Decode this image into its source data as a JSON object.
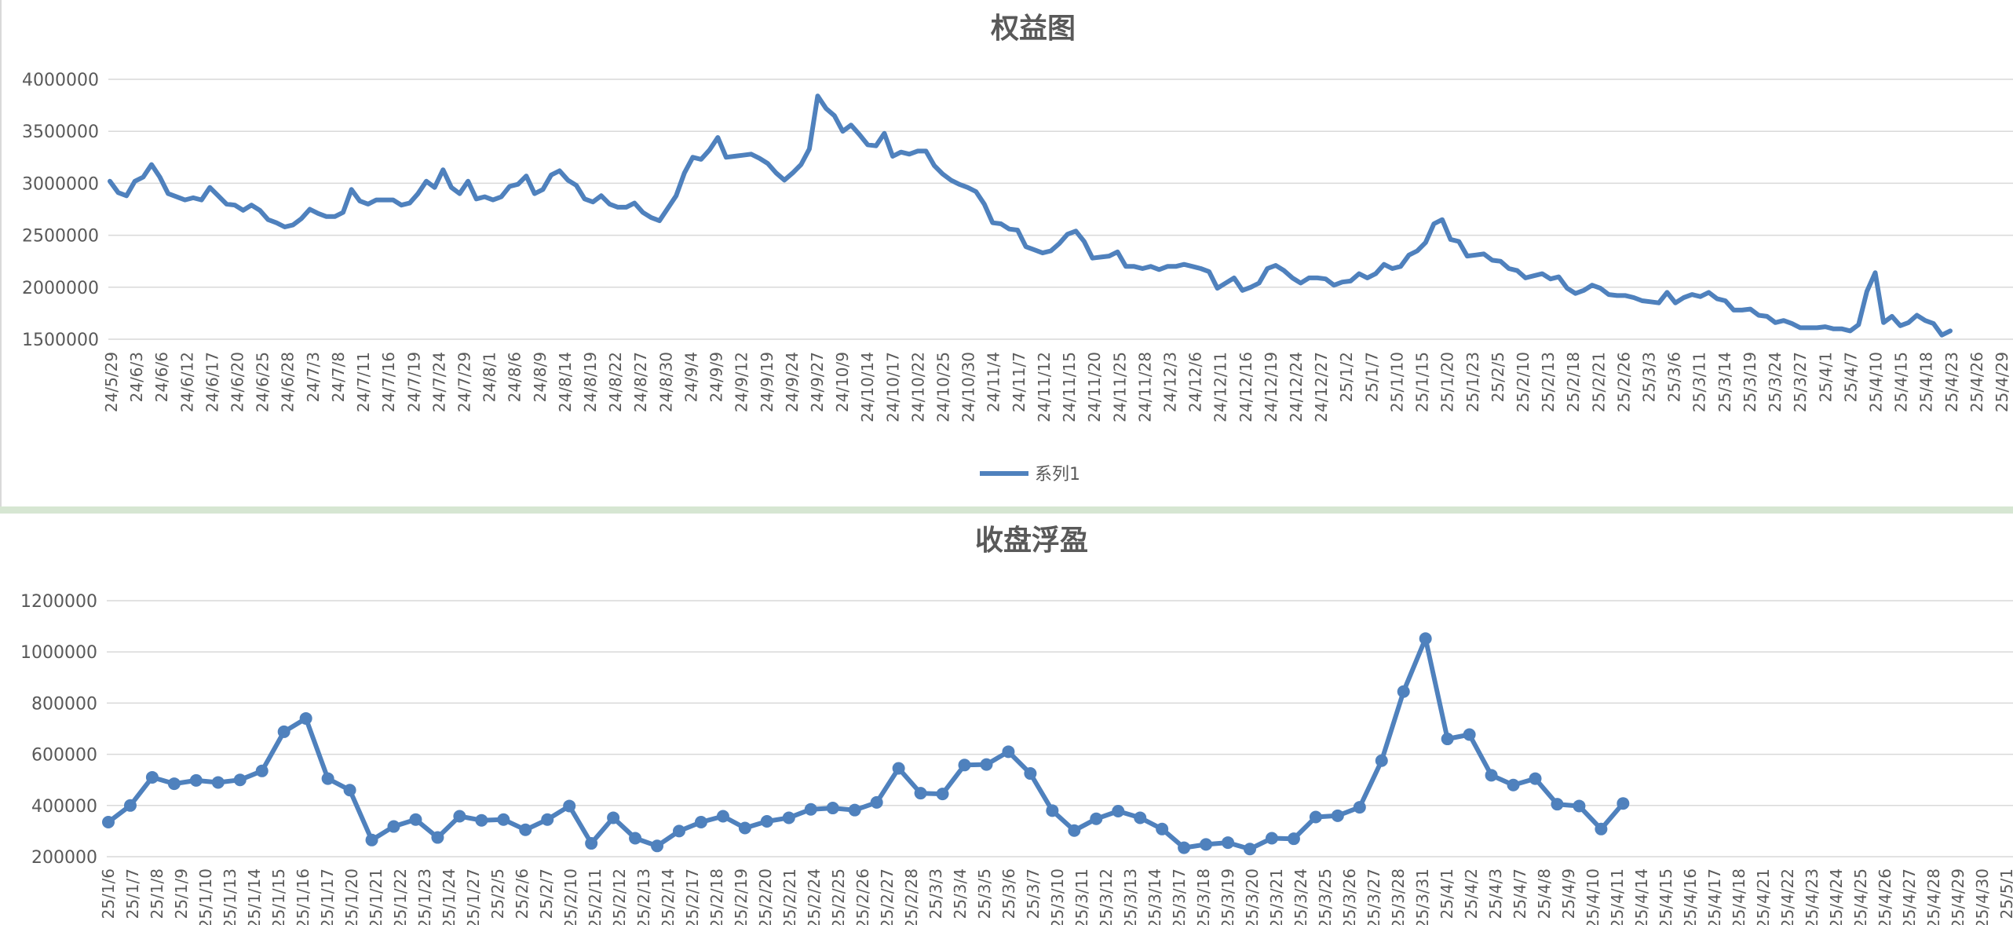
{
  "chart_data": [
    {
      "type": "line",
      "title": "权益图",
      "ylim": [
        1500000,
        4000000
      ],
      "yticks": [
        "1500000",
        "2000000",
        "2500000",
        "3000000",
        "3500000",
        "4000000"
      ],
      "grid": true,
      "legend": "bottom",
      "color": "#4f81bd",
      "markers": false,
      "x_labels": [
        "24/5/29",
        "24/6/3",
        "24/6/6",
        "24/6/12",
        "24/6/17",
        "24/6/20",
        "24/6/25",
        "24/6/28",
        "24/7/3",
        "24/7/8",
        "24/7/11",
        "24/7/16",
        "24/7/19",
        "24/7/24",
        "24/7/29",
        "24/8/1",
        "24/8/6",
        "24/8/9",
        "24/8/14",
        "24/8/19",
        "24/8/22",
        "24/8/27",
        "24/8/30",
        "24/9/4",
        "24/9/9",
        "24/9/12",
        "24/9/19",
        "24/9/24",
        "24/9/27",
        "24/10/9",
        "24/10/14",
        "24/10/17",
        "24/10/22",
        "24/10/25",
        "24/10/30",
        "24/11/4",
        "24/11/7",
        "24/11/12",
        "24/11/15",
        "24/11/20",
        "24/11/25",
        "24/11/28",
        "24/12/3",
        "24/12/6",
        "24/12/11",
        "24/12/16",
        "24/12/19",
        "24/12/24",
        "24/12/27",
        "25/1/2",
        "25/1/7",
        "25/1/10",
        "25/1/15",
        "25/1/20",
        "25/1/23",
        "25/2/5",
        "25/2/10",
        "25/2/13",
        "25/2/18",
        "25/2/21",
        "25/2/26",
        "25/3/3",
        "25/3/6",
        "25/3/11",
        "25/3/14",
        "25/3/19",
        "25/3/24",
        "25/3/27",
        "25/4/1",
        "25/4/7",
        "25/4/10",
        "25/4/15",
        "25/4/18",
        "25/4/23",
        "25/4/26",
        "25/4/29"
      ],
      "series": [
        {
          "name": "系列1",
          "values": [
            3020000,
            2910000,
            2880000,
            3020000,
            3060000,
            3180000,
            3060000,
            2900000,
            2870000,
            2840000,
            2860000,
            2840000,
            2960000,
            2880000,
            2800000,
            2790000,
            2740000,
            2790000,
            2740000,
            2650000,
            2620000,
            2580000,
            2600000,
            2660000,
            2750000,
            2710000,
            2680000,
            2680000,
            2720000,
            2940000,
            2830000,
            2800000,
            2840000,
            2840000,
            2840000,
            2790000,
            2810000,
            2900000,
            3020000,
            2960000,
            3130000,
            2960000,
            2900000,
            3020000,
            2850000,
            2870000,
            2840000,
            2870000,
            2970000,
            2990000,
            3070000,
            2900000,
            2940000,
            3080000,
            3120000,
            3030000,
            2980000,
            2850000,
            2820000,
            2880000,
            2800000,
            2770000,
            2770000,
            2810000,
            2720000,
            2670000,
            2640000,
            2760000,
            2880000,
            3100000,
            3250000,
            3230000,
            3320000,
            3440000,
            3250000,
            3260000,
            3270000,
            3280000,
            3240000,
            3190000,
            3100000,
            3030000,
            3100000,
            3180000,
            3330000,
            3840000,
            3720000,
            3650000,
            3500000,
            3560000,
            3470000,
            3370000,
            3360000,
            3480000,
            3260000,
            3300000,
            3280000,
            3310000,
            3310000,
            3170000,
            3090000,
            3030000,
            2990000,
            2960000,
            2920000,
            2800000,
            2620000,
            2610000,
            2560000,
            2550000,
            2390000,
            2360000,
            2330000,
            2350000,
            2420000,
            2510000,
            2540000,
            2440000,
            2280000,
            2290000,
            2300000,
            2340000,
            2200000,
            2200000,
            2180000,
            2200000,
            2170000,
            2200000,
            2200000,
            2220000,
            2200000,
            2180000,
            2150000,
            1990000,
            2040000,
            2090000,
            1970000,
            2000000,
            2040000,
            2180000,
            2210000,
            2160000,
            2090000,
            2040000,
            2090000,
            2090000,
            2080000,
            2020000,
            2050000,
            2060000,
            2130000,
            2090000,
            2130000,
            2220000,
            2180000,
            2200000,
            2310000,
            2350000,
            2430000,
            2610000,
            2650000,
            2460000,
            2440000,
            2300000,
            2310000,
            2320000,
            2260000,
            2250000,
            2180000,
            2160000,
            2090000,
            2110000,
            2130000,
            2080000,
            2100000,
            1990000,
            1940000,
            1970000,
            2020000,
            1990000,
            1930000,
            1920000,
            1920000,
            1900000,
            1870000,
            1860000,
            1850000,
            1950000,
            1850000,
            1900000,
            1930000,
            1910000,
            1950000,
            1890000,
            1870000,
            1780000,
            1780000,
            1790000,
            1730000,
            1720000,
            1660000,
            1680000,
            1650000,
            1610000,
            1610000,
            1610000,
            1620000,
            1600000,
            1600000,
            1580000,
            1640000,
            1960000,
            2140000,
            1660000,
            1720000,
            1630000,
            1660000,
            1730000,
            1680000,
            1650000,
            1540000,
            1580000
          ]
        }
      ]
    },
    {
      "type": "line",
      "title": "收盘浮盈",
      "ylim": [
        200000,
        1200000
      ],
      "yticks": [
        "200000",
        "400000",
        "600000",
        "800000",
        "1000000",
        "1200000"
      ],
      "grid": true,
      "legend": "none",
      "color": "#4f81bd",
      "markers": true,
      "x_labels": [
        "25/1/6",
        "25/1/7",
        "25/1/8",
        "25/1/9",
        "25/1/10",
        "25/1/13",
        "25/1/14",
        "25/1/15",
        "25/1/16",
        "25/1/17",
        "25/1/20",
        "25/1/21",
        "25/1/22",
        "25/1/23",
        "25/1/24",
        "25/1/27",
        "25/2/5",
        "25/2/6",
        "25/2/7",
        "25/2/10",
        "25/2/11",
        "25/2/12",
        "25/2/13",
        "25/2/14",
        "25/2/17",
        "25/2/18",
        "25/2/19",
        "25/2/20",
        "25/2/21",
        "25/2/24",
        "25/2/25",
        "25/2/26",
        "25/2/27",
        "25/2/28",
        "25/3/3",
        "25/3/4",
        "25/3/5",
        "25/3/6",
        "25/3/7",
        "25/3/10",
        "25/3/11",
        "25/3/12",
        "25/3/13",
        "25/3/14",
        "25/3/17",
        "25/3/18",
        "25/3/19",
        "25/3/20",
        "25/3/21",
        "25/3/24",
        "25/3/25",
        "25/3/26",
        "25/3/27",
        "25/3/28",
        "25/3/31",
        "25/4/1",
        "25/4/2",
        "25/4/3",
        "25/4/7",
        "25/4/8",
        "25/4/9",
        "25/4/10",
        "25/4/11",
        "25/4/14",
        "25/4/15",
        "25/4/16",
        "25/4/17",
        "25/4/18",
        "25/4/21",
        "25/4/22",
        "25/4/23",
        "25/4/24",
        "25/4/25",
        "25/4/26",
        "25/4/27",
        "25/4/28",
        "25/4/29",
        "25/4/30",
        "25/5/1"
      ],
      "series": [
        {
          "values": [
            335000,
            400000,
            510000,
            485000,
            498000,
            490000,
            500000,
            535000,
            688000,
            740000,
            505000,
            460000,
            265000,
            318000,
            345000,
            275000,
            358000,
            342000,
            345000,
            305000,
            345000,
            398000,
            252000,
            352000,
            272000,
            242000,
            300000,
            335000,
            358000,
            312000,
            338000,
            352000,
            385000,
            390000,
            382000,
            412000,
            545000,
            448000,
            445000,
            558000,
            560000,
            610000,
            525000,
            380000,
            302000,
            348000,
            378000,
            352000,
            308000,
            235000,
            248000,
            255000,
            230000,
            272000,
            270000,
            355000,
            360000,
            393000,
            575000,
            845000,
            1052000,
            660000,
            677000,
            518000,
            480000,
            505000,
            405000,
            398000,
            308000,
            408000,
            null,
            null,
            null,
            null,
            null,
            null,
            null,
            null,
            null
          ]
        }
      ]
    }
  ]
}
